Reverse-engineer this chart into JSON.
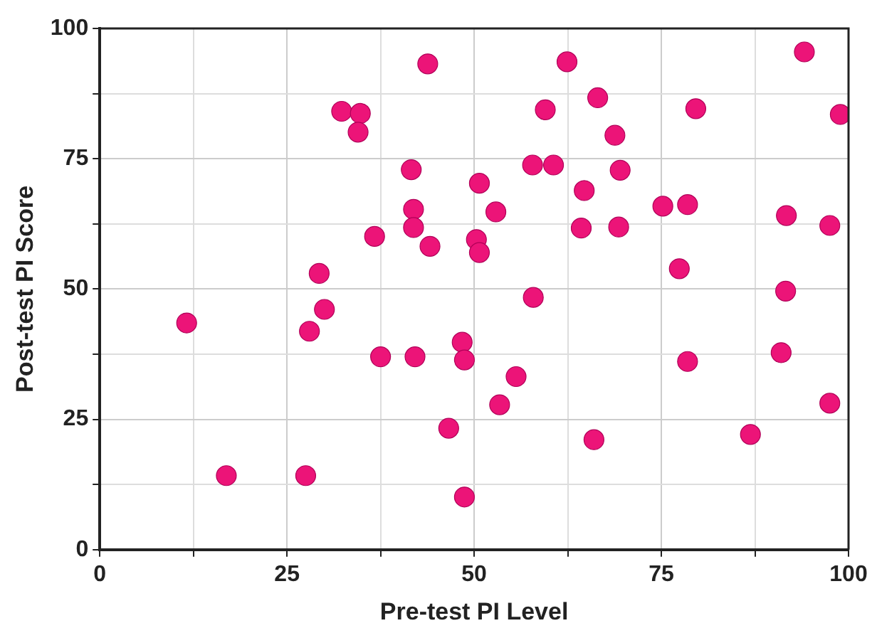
{
  "chart_data": {
    "type": "scatter",
    "xlabel": "Pre-test PI Level",
    "ylabel": "Post-test PI Score",
    "xlim": [
      0,
      100
    ],
    "ylim": [
      0,
      100
    ],
    "xticks": [
      0,
      {
        "value": 12.5,
        "label": null
      },
      25,
      {
        "value": 37.5,
        "label": null
      },
      50,
      {
        "value": 62.5,
        "label": null
      },
      75,
      {
        "value": 87.5,
        "label": null
      },
      100
    ],
    "yticks": [
      0,
      {
        "value": 12.5,
        "label": null
      },
      25,
      {
        "value": 37.5,
        "label": null
      },
      50,
      {
        "value": 62.5,
        "label": null
      },
      75,
      {
        "value": 87.5,
        "label": null
      },
      100
    ],
    "grid": true,
    "marker": "circle",
    "series": [
      {
        "color": "#ec1478",
        "x": [
          11.6,
          30,
          28,
          37.5,
          42.1,
          48.4,
          48.7,
          46.6,
          16.9,
          27.5,
          48.7,
          57.9,
          91.6,
          55.6,
          53.4,
          66,
          78.5,
          91,
          97.5,
          86.9,
          43.8,
          32.3,
          34.8,
          34.5,
          41.6,
          41.9,
          41.9,
          36.7,
          44.1,
          29.3,
          50.7,
          50.3,
          50.7,
          62.4,
          66.5,
          59.5,
          79.6,
          94.1,
          98.9,
          68.8,
          57.8,
          60.6,
          69.5,
          64.7,
          52.9,
          75.2,
          78.5,
          91.7,
          97.5,
          64.3,
          69.3,
          77.4
        ],
        "values": [
          43.5,
          46.1,
          41.9,
          37,
          37,
          39.8,
          36.4,
          23.3,
          14.2,
          14.2,
          10.1,
          48.4,
          49.6,
          33.2,
          27.8,
          21.1,
          36.1,
          37.8,
          28.1,
          22.1,
          93.2,
          84.1,
          83.7,
          80.1,
          72.9,
          65.3,
          61.8,
          60.1,
          58.2,
          53,
          70.3,
          59.5,
          57,
          93.6,
          86.7,
          84.4,
          84.6,
          95.5,
          83.5,
          79.5,
          73.8,
          73.8,
          72.8,
          68.9,
          64.8,
          65.9,
          66.2,
          64.1,
          62.2,
          61.7,
          61.9,
          53.9
        ]
      }
    ]
  }
}
